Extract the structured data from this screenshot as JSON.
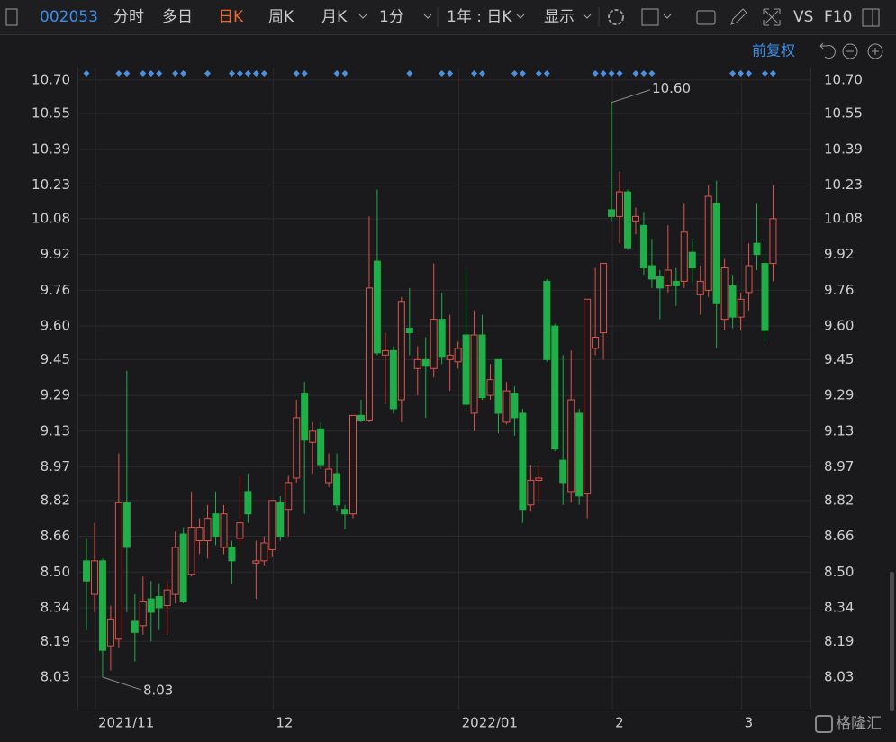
{
  "toolbar": {
    "code": "002053",
    "tabs": [
      "分时",
      "多日",
      "日K",
      "周K",
      "月K",
      "1分",
      "1年 : 日K",
      "显示"
    ],
    "vs": "VS",
    "f10": "F10",
    "adjust": "前复权"
  },
  "watermark": "格隆汇",
  "chart_data": {
    "type": "candlestick",
    "categories": [
      null,
      "2021/11",
      null,
      null,
      null,
      null,
      null,
      null,
      null,
      null,
      null,
      null,
      null,
      null,
      null,
      null,
      null,
      null,
      null,
      null,
      null,
      null,
      null,
      "12",
      null,
      null,
      null,
      null,
      null,
      null,
      null,
      null,
      null,
      null,
      null,
      null,
      null,
      null,
      null,
      null,
      null,
      null,
      null,
      null,
      null,
      null,
      "2022/01",
      null,
      null,
      null,
      null,
      null,
      null,
      null,
      null,
      null,
      null,
      null,
      null,
      null,
      null,
      null,
      null,
      null,
      null,
      "2",
      null,
      null,
      null,
      null,
      null,
      null,
      null,
      null,
      null,
      null,
      null,
      null,
      null,
      null,
      null,
      "3",
      null,
      null,
      null,
      null
    ],
    "open": [
      8.55,
      8.4,
      8.55,
      8.17,
      8.2,
      8.81,
      8.28,
      8.26,
      8.38,
      8.39,
      8.35,
      8.4,
      8.67,
      8.49,
      8.64,
      8.64,
      8.76,
      8.61,
      8.61,
      8.65,
      8.86,
      8.54,
      8.55,
      8.6,
      8.81,
      8.78,
      8.92,
      9.3,
      9.08,
      9.14,
      8.9,
      8.94,
      8.78,
      8.76,
      9.2,
      9.18,
      9.89,
      9.47,
      9.49,
      9.27,
      9.59,
      9.41,
      9.45,
      9.41,
      9.63,
      9.45,
      9.44,
      9.56,
      9.21,
      9.56,
      9.29,
      9.45,
      9.17,
      9.3,
      9.21,
      8.8,
      8.91,
      9.8,
      9.6,
      9.0,
      8.86,
      9.21,
      8.85,
      9.5,
      9.57,
      10.12,
      10.09,
      10.2,
      10.07,
      10.05,
      9.87,
      9.82,
      9.78,
      9.8,
      9.8,
      9.93,
      9.74,
      9.76,
      10.15,
      9.63,
      9.78,
      9.64,
      9.75,
      9.97,
      9.88,
      9.88
    ],
    "high": [
      8.65,
      8.72,
      8.56,
      8.35,
      9.03,
      9.4,
      8.4,
      8.48,
      8.46,
      8.45,
      8.46,
      8.68,
      8.7,
      8.86,
      8.74,
      8.8,
      8.86,
      8.8,
      8.64,
      8.93,
      8.94,
      8.64,
      8.66,
      8.82,
      8.84,
      8.93,
      9.27,
      9.35,
      9.17,
      9.17,
      9.03,
      9.03,
      8.8,
      9.2,
      9.27,
      10.09,
      10.21,
      9.57,
      9.51,
      9.73,
      9.77,
      9.51,
      9.55,
      9.88,
      9.75,
      9.65,
      9.53,
      9.85,
      9.67,
      9.65,
      9.43,
      9.45,
      9.35,
      9.33,
      9.23,
      8.98,
      8.98,
      9.81,
      9.61,
      9.47,
      9.49,
      9.23,
      9.72,
      9.86,
      9.88,
      10.6,
      10.29,
      10.21,
      10.13,
      10.11,
      9.99,
      9.85,
      10.05,
      9.86,
      10.15,
      9.99,
      9.87,
      10.23,
      10.25,
      9.9,
      9.83,
      9.75,
      9.97,
      10.15,
      9.93,
      10.23
    ],
    "low": [
      8.24,
      8.32,
      8.03,
      8.06,
      8.16,
      8.32,
      8.1,
      8.22,
      8.19,
      8.24,
      8.22,
      8.36,
      8.36,
      8.48,
      8.58,
      8.56,
      8.62,
      8.58,
      8.45,
      8.62,
      8.72,
      8.38,
      8.53,
      8.57,
      8.64,
      8.66,
      8.9,
      8.76,
      8.94,
      8.96,
      8.88,
      8.77,
      8.69,
      8.74,
      9.17,
      9.17,
      9.47,
      9.25,
      9.21,
      9.17,
      9.47,
      9.29,
      9.19,
      9.37,
      9.43,
      9.31,
      9.41,
      9.23,
      9.13,
      9.27,
      9.27,
      9.12,
      9.16,
      9.11,
      8.72,
      8.77,
      8.82,
      9.44,
      9.04,
      8.8,
      8.81,
      8.8,
      8.74,
      9.47,
      9.45,
      10.07,
      9.97,
      9.94,
      10.01,
      9.83,
      9.77,
      9.63,
      9.75,
      9.69,
      9.77,
      9.79,
      9.65,
      9.73,
      9.5,
      9.58,
      9.59,
      9.58,
      9.67,
      9.85,
      9.53,
      9.8
    ],
    "close": [
      8.46,
      8.55,
      8.15,
      8.29,
      8.81,
      8.61,
      8.23,
      8.37,
      8.32,
      8.34,
      8.42,
      8.61,
      8.37,
      8.7,
      8.7,
      8.74,
      8.66,
      8.76,
      8.55,
      8.72,
      8.76,
      8.55,
      8.63,
      8.82,
      8.66,
      8.9,
      9.19,
      9.09,
      9.13,
      8.98,
      8.96,
      8.8,
      8.76,
      9.2,
      9.18,
      9.77,
      9.48,
      9.49,
      9.23,
      9.71,
      9.57,
      9.45,
      9.42,
      9.63,
      9.46,
      9.47,
      9.5,
      9.25,
      9.56,
      9.28,
      9.36,
      9.21,
      9.31,
      9.19,
      8.78,
      8.91,
      8.92,
      9.45,
      9.05,
      8.9,
      9.27,
      8.84,
      9.72,
      9.55,
      9.88,
      10.09,
      10.2,
      9.95,
      10.09,
      9.86,
      9.81,
      9.77,
      9.85,
      9.78,
      10.02,
      9.86,
      9.8,
      10.18,
      9.7,
      9.86,
      9.64,
      9.72,
      9.87,
      9.92,
      9.58,
      10.08
    ],
    "high_label": "10.60",
    "low_label": "8.03",
    "signals": [
      0,
      4,
      5,
      7,
      8,
      9,
      11,
      12,
      15,
      18,
      19,
      20,
      21,
      22,
      26,
      27,
      31,
      32,
      40,
      44,
      45,
      48,
      49,
      53,
      54,
      56,
      57,
      63,
      64,
      65,
      66,
      68,
      69,
      70,
      80,
      81,
      82,
      84,
      85
    ],
    "up_color": "#e0524a",
    "down_color": "#1fae48",
    "signal_color": "#4a8fe0",
    "ylim": [
      7.885,
      10.756
    ],
    "yticks": [
      {
        "value": 10.7,
        "label": "10.70"
      },
      10.55,
      10.39,
      10.23,
      10.08,
      9.92,
      9.76,
      {
        "value": 9.6,
        "label": "9.60"
      },
      9.45,
      9.29,
      9.13,
      8.97,
      8.82,
      8.66,
      {
        "value": 8.5,
        "label": "8.50"
      },
      8.34,
      8.19,
      8.03
    ],
    "grid": true
  }
}
